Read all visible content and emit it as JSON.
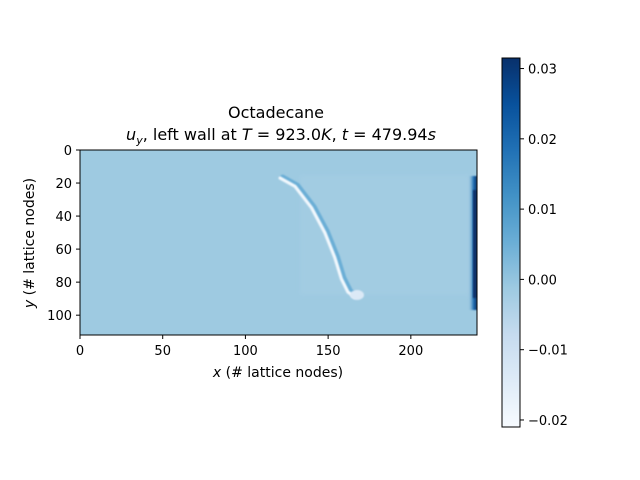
{
  "chart_data": {
    "type": "heatmap",
    "title": "Octadecane",
    "subtitle": "u_y, left wall at T = 923.0K, t = 479.94s",
    "subtitle_parts": {
      "var_symbol": "u",
      "var_subscript": "y",
      "mid_text": ", left wall at ",
      "temp_symbol": "T",
      "temp_value": " = 923.0",
      "temp_unit": "K",
      "comma": ", ",
      "time_symbol": "t",
      "time_value": " = 479.94",
      "time_unit": "s"
    },
    "xlabel": "x (# lattice nodes)",
    "xlabel_parts": {
      "symbol": "x",
      "rest": " (# lattice nodes)"
    },
    "ylabel": "y (# lattice nodes)",
    "ylabel_parts": {
      "symbol": "y",
      "rest": " (# lattice nodes)"
    },
    "xlim": [
      0,
      240
    ],
    "ylim": [
      112,
      0
    ],
    "x_ticks": [
      0,
      50,
      100,
      150,
      200
    ],
    "x_tick_labels": [
      "0",
      "50",
      "100",
      "150",
      "200"
    ],
    "y_ticks": [
      0,
      20,
      40,
      60,
      80,
      100
    ],
    "y_tick_labels": [
      "0",
      "20",
      "40",
      "60",
      "80",
      "100"
    ],
    "colormap": "Blues",
    "colorbar": {
      "range": [
        -0.021,
        0.0315
      ],
      "ticks": [
        -0.02,
        -0.01,
        0.0,
        0.01,
        0.02,
        0.03
      ],
      "tick_labels": [
        "−0.02",
        "−0.01",
        "0.00",
        "0.01",
        "0.02",
        "0.03"
      ]
    },
    "background_value": 0.0,
    "colors": {
      "background_field": "#9ecae1",
      "cmap_low": "#f7fbff",
      "cmap_mid": "#6baed6",
      "cmap_high": "#08306b"
    },
    "features": [
      {
        "name": "interface-band",
        "points": [
          [
            121,
            17
          ],
          [
            130,
            22
          ],
          [
            140,
            35
          ],
          [
            148,
            50
          ],
          [
            154,
            65
          ],
          [
            158,
            78
          ],
          [
            162,
            86
          ],
          [
            166,
            89
          ]
        ],
        "value": -0.019
      },
      {
        "name": "right-wall-layer",
        "x": 238,
        "y_range": [
          18,
          95
        ],
        "value": 0.031
      }
    ]
  }
}
